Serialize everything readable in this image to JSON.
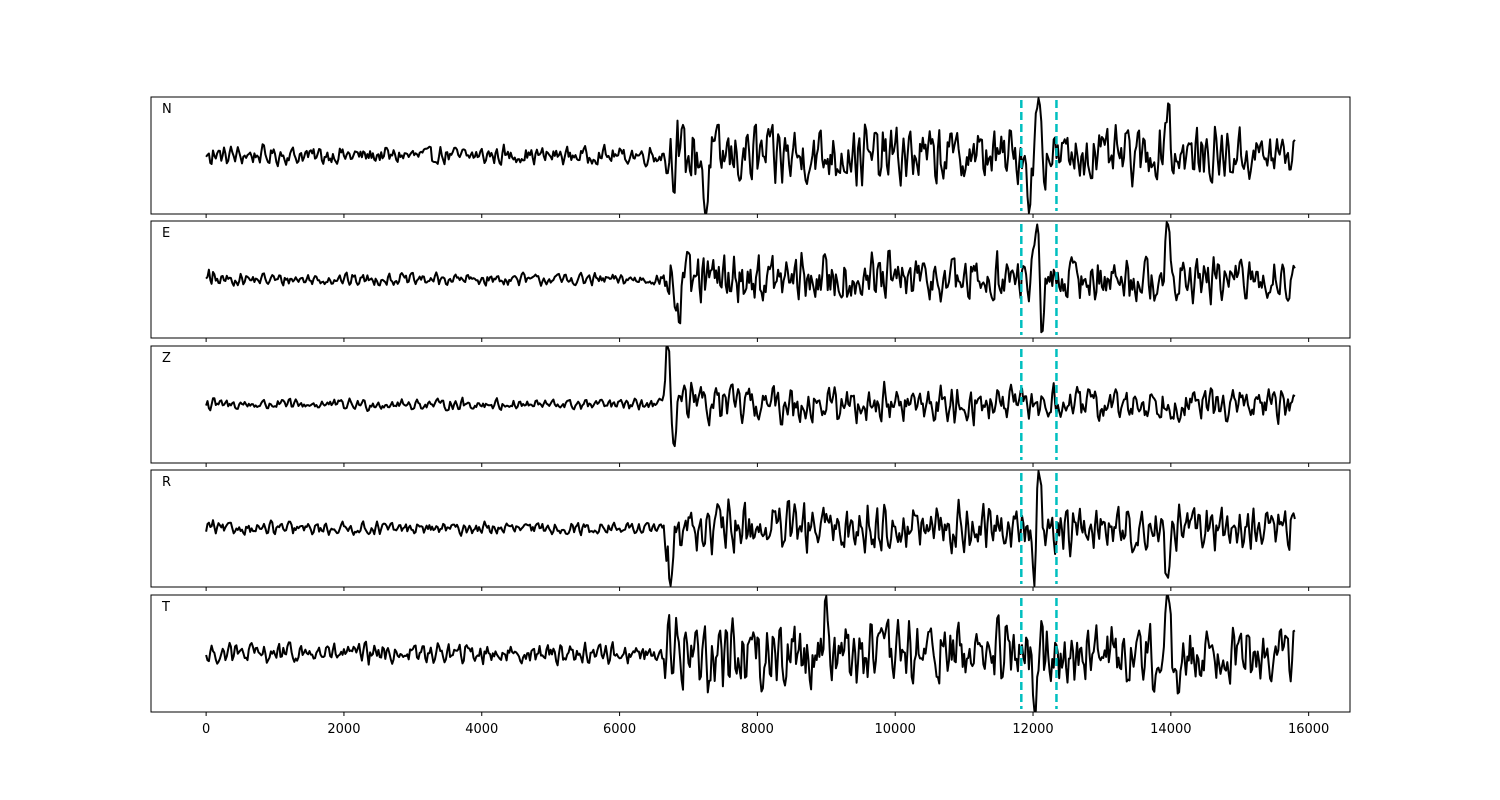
{
  "chart_data": {
    "type": "line",
    "x_range": [
      0,
      15800
    ],
    "xlim": [
      -800,
      16600
    ],
    "x_ticks": [
      0,
      2000,
      4000,
      6000,
      8000,
      10000,
      12000,
      14000,
      16000
    ],
    "x_tick_labels": [
      "0",
      "2000",
      "4000",
      "6000",
      "8000",
      "10000",
      "12000",
      "14000",
      "16000"
    ],
    "markers": [
      11830,
      12340
    ],
    "marker_color": "#00bfbf",
    "trace_color": "#000000",
    "panels": [
      {
        "label": "N",
        "ylim": [
          -1.0,
          1.0
        ],
        "series_profile": {
          "noise_amp": 0.12,
          "event_start": 6650,
          "event_amp": 0.42,
          "spikes": [
            [
              12080,
              0.9
            ],
            [
              7250,
              -0.85
            ],
            [
              11950,
              -0.6
            ],
            [
              13950,
              0.7
            ]
          ]
        }
      },
      {
        "label": "E",
        "ylim": [
          -1.0,
          1.0
        ],
        "series_profile": {
          "noise_amp": 0.08,
          "event_start": 6650,
          "event_amp": 0.36,
          "spikes": [
            [
              12050,
              0.95
            ],
            [
              12120,
              -0.8
            ],
            [
              13950,
              0.6
            ],
            [
              6850,
              -0.55
            ]
          ]
        }
      },
      {
        "label": "Z",
        "ylim": [
          -1.0,
          1.0
        ],
        "series_profile": {
          "noise_amp": 0.07,
          "event_start": 6650,
          "event_amp": 0.26,
          "spikes": [
            [
              6700,
              1.2
            ],
            [
              6780,
              -0.5
            ]
          ]
        }
      },
      {
        "label": "R",
        "ylim": [
          -1.0,
          1.0
        ],
        "series_profile": {
          "noise_amp": 0.08,
          "event_start": 6650,
          "event_amp": 0.34,
          "spikes": [
            [
              12080,
              0.95
            ],
            [
              12020,
              -0.9
            ],
            [
              13950,
              -0.7
            ],
            [
              6720,
              -0.55
            ]
          ]
        }
      },
      {
        "label": "T",
        "ylim": [
          -1.0,
          1.0
        ],
        "series_profile": {
          "noise_amp": 0.13,
          "event_start": 6650,
          "event_amp": 0.48,
          "spikes": [
            [
              12030,
              -0.95
            ],
            [
              13950,
              0.85
            ],
            [
              14100,
              -0.8
            ],
            [
              9000,
              0.7
            ]
          ]
        }
      }
    ]
  }
}
